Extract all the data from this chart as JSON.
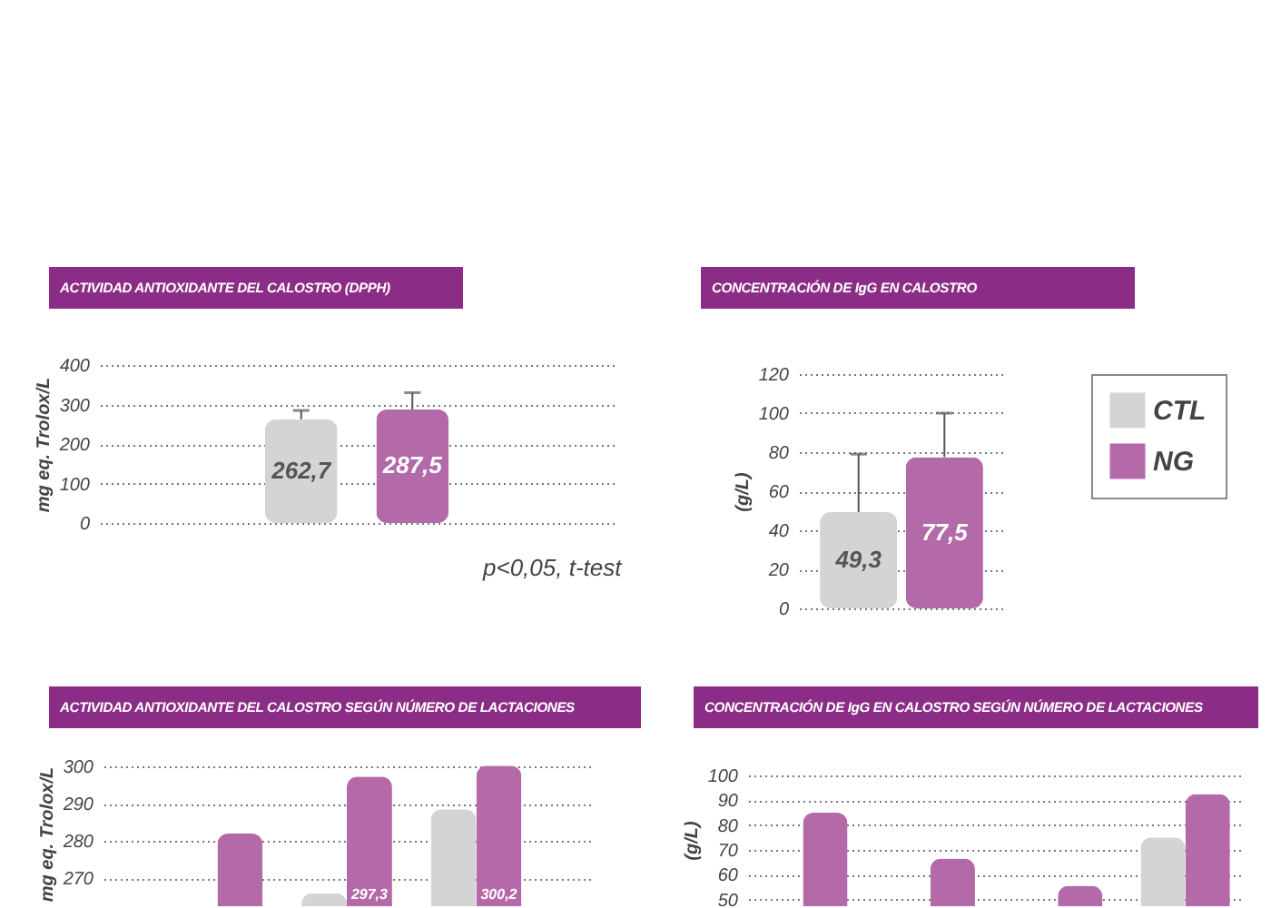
{
  "chart_data": [
    {
      "type": "bar",
      "title": "ACTIVIDAD ANTIOXIDANTE DEL CALOSTRO (DPPH)",
      "ylabel": "mg eq. Trolox/L",
      "categories": [
        null
      ],
      "series": [
        {
          "color": "#d4d4d4",
          "values": [
            262.7
          ],
          "value_labels": [
            "262,7"
          ],
          "errors": [
            [
              262.7,
              285
            ]
          ]
        },
        {
          "color": "#b469a8",
          "values": [
            287.5
          ],
          "value_labels": [
            "287,5"
          ],
          "errors": [
            [
              287.5,
              330
            ]
          ]
        }
      ],
      "ylim": [
        0,
        400
      ],
      "yticks": [
        0,
        100,
        200,
        300,
        400
      ],
      "grid": "y",
      "tick_labels": "y",
      "annotations": [
        "p<0,05, t-test"
      ]
    },
    {
      "type": "bar",
      "title": "CONCENTRACIÓN DE IgG EN CALOSTRO",
      "ylabel": "(g/L)",
      "categories": [
        null
      ],
      "series": [
        {
          "name": "CTL",
          "color": "#d4d4d4",
          "values": [
            49.3
          ],
          "value_labels": [
            "49,3"
          ],
          "errors": [
            [
              49.3,
              79
            ]
          ]
        },
        {
          "name": "NG",
          "color": "#b469a8",
          "values": [
            77.5
          ],
          "value_labels": [
            "77,5"
          ],
          "errors": [
            [
              77.5,
              100
            ]
          ]
        }
      ],
      "ylim": [
        0,
        120
      ],
      "yticks": [
        0,
        20,
        40,
        60,
        80,
        100,
        120
      ],
      "grid": "y",
      "tick_labels": "y",
      "legend": "right"
    },
    {
      "type": "bar",
      "title": "ACTIVIDAD ANTIOXIDANTE DEL CALOSTRO SEGÚN NÚMERO DE LACTACIONES",
      "ylabel": "mg eq. Trolox/L",
      "categories": [
        null,
        null,
        null
      ],
      "series": [
        {
          "color": "#d4d4d4",
          "values": [
            null,
            266,
            288.5
          ]
        },
        {
          "color": "#b469a8",
          "values": [
            282,
            297.3,
            300.2
          ],
          "value_labels": [
            null,
            "297,3",
            "300,2"
          ]
        }
      ],
      "ylim": [
        263,
        301
      ],
      "yticks": [
        270,
        280,
        290,
        300
      ],
      "grid": "y",
      "tick_labels": "y"
    },
    {
      "type": "bar",
      "title": "CONCENTRACIÓN DE IgG EN CALOSTRO SEGÚN NÚMERO DE LACTACIONES",
      "ylabel": "(g/L)",
      "categories": [
        null,
        null,
        null,
        null
      ],
      "series": [
        {
          "color": "#d4d4d4",
          "values": [
            null,
            null,
            null,
            75
          ]
        },
        {
          "color": "#b469a8",
          "values": [
            85,
            66.5,
            55.5,
            92.5
          ]
        }
      ],
      "ylim": [
        48,
        100
      ],
      "yticks": [
        50,
        60,
        70,
        80,
        90,
        100
      ],
      "grid": "y",
      "tick_labels": "y"
    }
  ]
}
